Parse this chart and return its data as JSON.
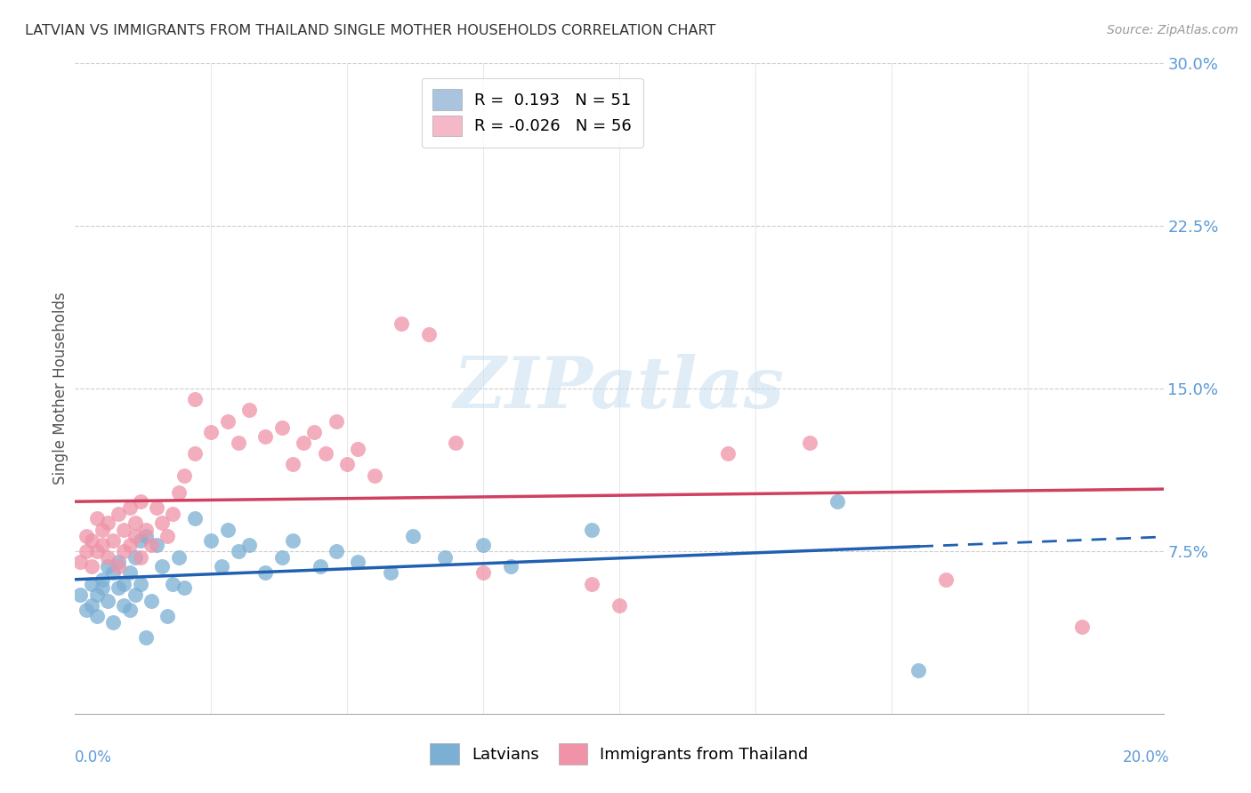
{
  "title": "LATVIAN VS IMMIGRANTS FROM THAILAND SINGLE MOTHER HOUSEHOLDS CORRELATION CHART",
  "source": "Source: ZipAtlas.com",
  "ylabel": "Single Mother Households",
  "xlim": [
    0.0,
    0.2
  ],
  "ylim": [
    0.0,
    0.3
  ],
  "yticks": [
    0.075,
    0.15,
    0.225,
    0.3
  ],
  "ytick_labels": [
    "7.5%",
    "15.0%",
    "22.5%",
    "30.0%"
  ],
  "legend_r_entries": [
    {
      "label": "R =  0.193   N = 51",
      "color": "#aac4e0"
    },
    {
      "label": "R = -0.026   N = 56",
      "color": "#f4b8c8"
    }
  ],
  "latvian_color": "#7bafd4",
  "thai_color": "#f093a8",
  "trend_latvian_color": "#2060b0",
  "trend_thai_color": "#d04060",
  "watermark_text": "ZIPatlas",
  "latvian_scatter": [
    [
      0.001,
      0.055
    ],
    [
      0.002,
      0.048
    ],
    [
      0.003,
      0.05
    ],
    [
      0.003,
      0.06
    ],
    [
      0.004,
      0.045
    ],
    [
      0.004,
      0.055
    ],
    [
      0.005,
      0.058
    ],
    [
      0.005,
      0.062
    ],
    [
      0.006,
      0.052
    ],
    [
      0.006,
      0.068
    ],
    [
      0.007,
      0.042
    ],
    [
      0.007,
      0.065
    ],
    [
      0.008,
      0.058
    ],
    [
      0.008,
      0.07
    ],
    [
      0.009,
      0.05
    ],
    [
      0.009,
      0.06
    ],
    [
      0.01,
      0.048
    ],
    [
      0.01,
      0.065
    ],
    [
      0.011,
      0.055
    ],
    [
      0.011,
      0.072
    ],
    [
      0.012,
      0.06
    ],
    [
      0.012,
      0.08
    ],
    [
      0.013,
      0.035
    ],
    [
      0.013,
      0.082
    ],
    [
      0.014,
      0.052
    ],
    [
      0.015,
      0.078
    ],
    [
      0.016,
      0.068
    ],
    [
      0.017,
      0.045
    ],
    [
      0.018,
      0.06
    ],
    [
      0.019,
      0.072
    ],
    [
      0.02,
      0.058
    ],
    [
      0.022,
      0.09
    ],
    [
      0.025,
      0.08
    ],
    [
      0.027,
      0.068
    ],
    [
      0.028,
      0.085
    ],
    [
      0.03,
      0.075
    ],
    [
      0.032,
      0.078
    ],
    [
      0.035,
      0.065
    ],
    [
      0.038,
      0.072
    ],
    [
      0.04,
      0.08
    ],
    [
      0.045,
      0.068
    ],
    [
      0.048,
      0.075
    ],
    [
      0.052,
      0.07
    ],
    [
      0.058,
      0.065
    ],
    [
      0.062,
      0.082
    ],
    [
      0.068,
      0.072
    ],
    [
      0.075,
      0.078
    ],
    [
      0.08,
      0.068
    ],
    [
      0.095,
      0.085
    ],
    [
      0.14,
      0.098
    ],
    [
      0.155,
      0.02
    ]
  ],
  "thai_scatter": [
    [
      0.001,
      0.07
    ],
    [
      0.002,
      0.075
    ],
    [
      0.002,
      0.082
    ],
    [
      0.003,
      0.068
    ],
    [
      0.003,
      0.08
    ],
    [
      0.004,
      0.075
    ],
    [
      0.004,
      0.09
    ],
    [
      0.005,
      0.078
    ],
    [
      0.005,
      0.085
    ],
    [
      0.006,
      0.072
    ],
    [
      0.006,
      0.088
    ],
    [
      0.007,
      0.08
    ],
    [
      0.008,
      0.068
    ],
    [
      0.008,
      0.092
    ],
    [
      0.009,
      0.075
    ],
    [
      0.009,
      0.085
    ],
    [
      0.01,
      0.078
    ],
    [
      0.01,
      0.095
    ],
    [
      0.011,
      0.082
    ],
    [
      0.011,
      0.088
    ],
    [
      0.012,
      0.072
    ],
    [
      0.012,
      0.098
    ],
    [
      0.013,
      0.085
    ],
    [
      0.014,
      0.078
    ],
    [
      0.015,
      0.095
    ],
    [
      0.016,
      0.088
    ],
    [
      0.017,
      0.082
    ],
    [
      0.018,
      0.092
    ],
    [
      0.019,
      0.102
    ],
    [
      0.02,
      0.11
    ],
    [
      0.022,
      0.12
    ],
    [
      0.022,
      0.145
    ],
    [
      0.025,
      0.13
    ],
    [
      0.028,
      0.135
    ],
    [
      0.03,
      0.125
    ],
    [
      0.032,
      0.14
    ],
    [
      0.035,
      0.128
    ],
    [
      0.038,
      0.132
    ],
    [
      0.04,
      0.115
    ],
    [
      0.042,
      0.125
    ],
    [
      0.044,
      0.13
    ],
    [
      0.046,
      0.12
    ],
    [
      0.048,
      0.135
    ],
    [
      0.05,
      0.115
    ],
    [
      0.052,
      0.122
    ],
    [
      0.055,
      0.11
    ],
    [
      0.06,
      0.18
    ],
    [
      0.065,
      0.175
    ],
    [
      0.07,
      0.125
    ],
    [
      0.075,
      0.065
    ],
    [
      0.095,
      0.06
    ],
    [
      0.1,
      0.05
    ],
    [
      0.12,
      0.12
    ],
    [
      0.135,
      0.125
    ],
    [
      0.16,
      0.062
    ],
    [
      0.185,
      0.04
    ]
  ]
}
